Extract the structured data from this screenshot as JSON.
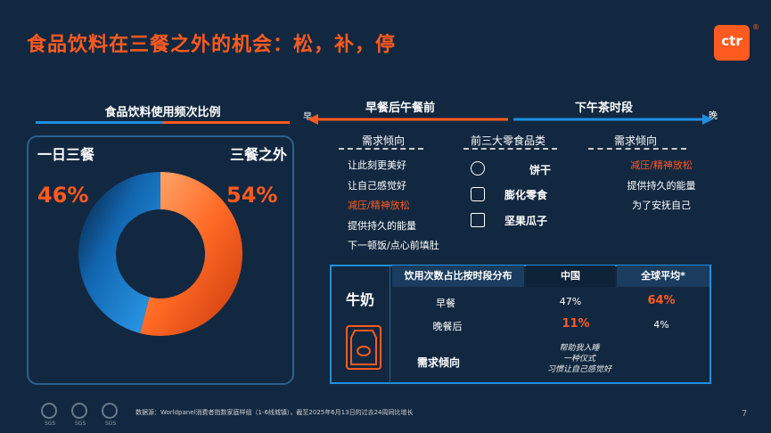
{
  "title": "食品饮料在三餐之外的机会：松，补，停",
  "logo": {
    "text": "ctr",
    "mark": "®"
  },
  "left": {
    "heading": "食品饮料使用频次比例",
    "meal_label": "一日三餐",
    "outside_label": "三餐之外",
    "meal_pct": "46%",
    "outside_pct": "54%"
  },
  "chart_data": {
    "type": "pie",
    "title": "",
    "categories": [
      "一日三餐",
      "三餐之外"
    ],
    "values": [
      46,
      54
    ],
    "colors": [
      "#1f8fe0",
      "#ff5a1f"
    ]
  },
  "timeline": {
    "early": "早",
    "late": "晚",
    "left_label": "早餐后午餐前",
    "right_label": "下午茶时段"
  },
  "columns": {
    "left_head": "需求倾向",
    "middle_head": "前三大零食品类",
    "right_head": "需求倾向"
  },
  "left_needs": [
    "让此刻更美好",
    "让自己感觉好",
    "减压/精神放松",
    "提供持久的能量",
    "下一顿饭/点心前填肚"
  ],
  "snacks": [
    "饼干",
    "膨化零食",
    "坚果瓜子"
  ],
  "right_needs": [
    "减压/精神放松",
    "提供持久的能量",
    "为了安抚自己"
  ],
  "milk": {
    "title": "牛奶",
    "header_dist": "饮用次数占比按时段分布",
    "header_china": "中国",
    "header_global": "全球平均*",
    "rows": [
      {
        "label": "早餐",
        "china": "47%",
        "global": "64%"
      },
      {
        "label": "晚餐后",
        "china": "11%",
        "global": "4%"
      }
    ],
    "need_label": "需求倾向",
    "need_values": [
      "帮助我入睡",
      "一种仪式",
      "习惯让自己感觉好"
    ]
  },
  "footer": {
    "note": "数据源：Worldpanel消费者指数家庭样组（1-6线城镇），截至2025年6月13日的过去24周同比增长",
    "page": "7",
    "badge_text": "SGS"
  },
  "colors": {
    "accent": "#ff5a1f",
    "blue": "#1f8fe0",
    "bg": "#122840"
  }
}
